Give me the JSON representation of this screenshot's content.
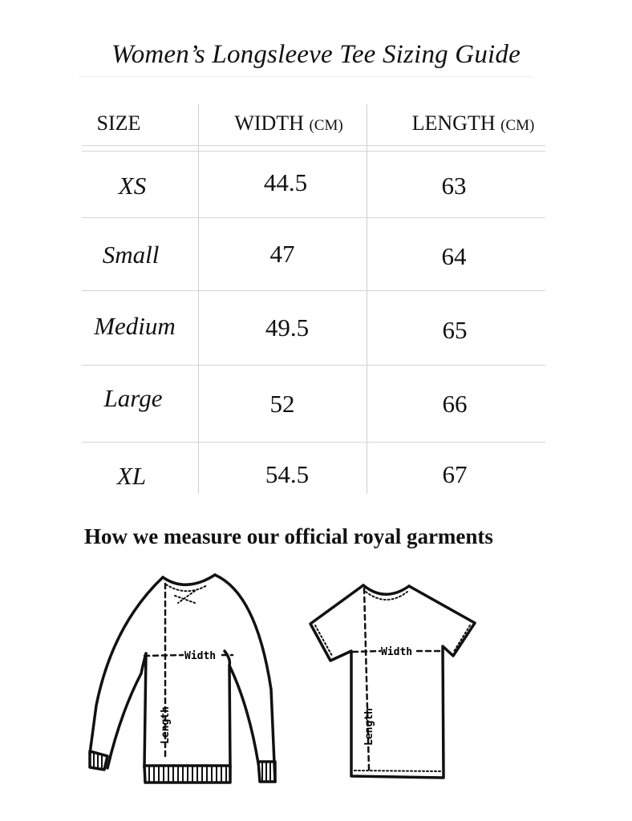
{
  "title": "Women’s Longsleeve Tee Sizing Guide",
  "table": {
    "headers": [
      {
        "label": "SIZE",
        "unit": ""
      },
      {
        "label": "WIDTH",
        "unit": "(CM)"
      },
      {
        "label": "LENGTH",
        "unit": "(CM)"
      }
    ],
    "rows": [
      {
        "size": "XS",
        "width": "44.5",
        "length": "63"
      },
      {
        "size": "Small",
        "width": "47",
        "length": "64"
      },
      {
        "size": "Medium",
        "width": "49.5",
        "length": "65"
      },
      {
        "size": "Large",
        "width": "52",
        "length": "66"
      },
      {
        "size": "XL",
        "width": "54.5",
        "length": "67"
      }
    ]
  },
  "measure": {
    "heading": "How we measure our official royal garments",
    "width_label": "Width",
    "length_label": "Length"
  }
}
